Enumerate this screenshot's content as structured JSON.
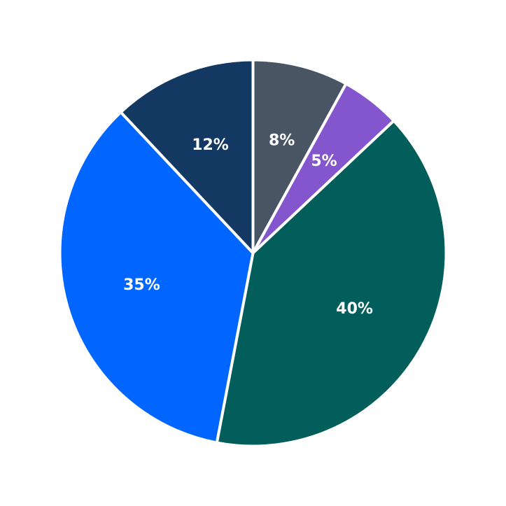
{
  "chart_data": {
    "type": "pie",
    "start_angle_deg": 90,
    "direction": "clockwise",
    "slices": [
      {
        "value": 8,
        "label": "8%",
        "color": "#4a5563"
      },
      {
        "value": 5,
        "label": "5%",
        "color": "#8456ce"
      },
      {
        "value": 40,
        "label": "40%",
        "color": "#025e5b"
      },
      {
        "value": 35,
        "label": "35%",
        "color": "#0066ff"
      },
      {
        "value": 12,
        "label": "12%",
        "color": "#133963"
      }
    ]
  }
}
